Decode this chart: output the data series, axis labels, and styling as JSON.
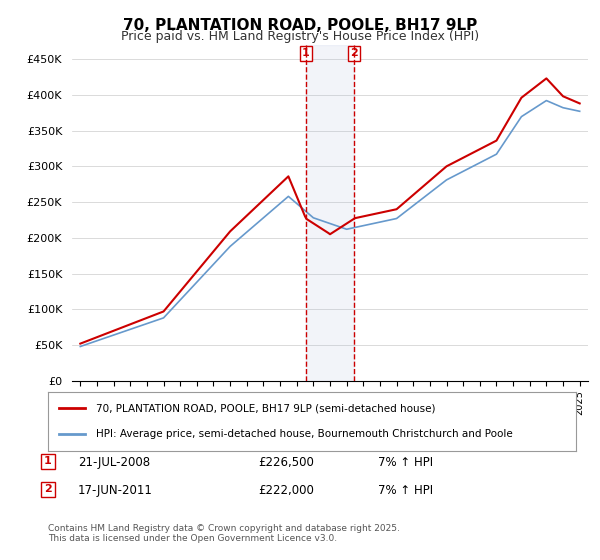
{
  "title": "70, PLANTATION ROAD, POOLE, BH17 9LP",
  "subtitle": "Price paid vs. HM Land Registry's House Price Index (HPI)",
  "legend_line1": "70, PLANTATION ROAD, POOLE, BH17 9LP (semi-detached house)",
  "legend_line2": "HPI: Average price, semi-detached house, Bournemouth Christchurch and Poole",
  "transaction1_date": "21-JUL-2008",
  "transaction1_price": "£226,500",
  "transaction1_hpi": "7% ↑ HPI",
  "transaction2_date": "17-JUN-2011",
  "transaction2_price": "£222,000",
  "transaction2_hpi": "7% ↑ HPI",
  "footer": "Contains HM Land Registry data © Crown copyright and database right 2025.\nThis data is licensed under the Open Government Licence v3.0.",
  "line_color_property": "#cc0000",
  "line_color_hpi": "#6699cc",
  "background_color": "#ffffff",
  "plot_bg_color": "#ffffff",
  "marker1_x": 2008.55,
  "marker2_x": 2011.46,
  "ylim_min": 0,
  "ylim_max": 470000,
  "xlim_min": 1994.5,
  "xlim_max": 2025.5
}
